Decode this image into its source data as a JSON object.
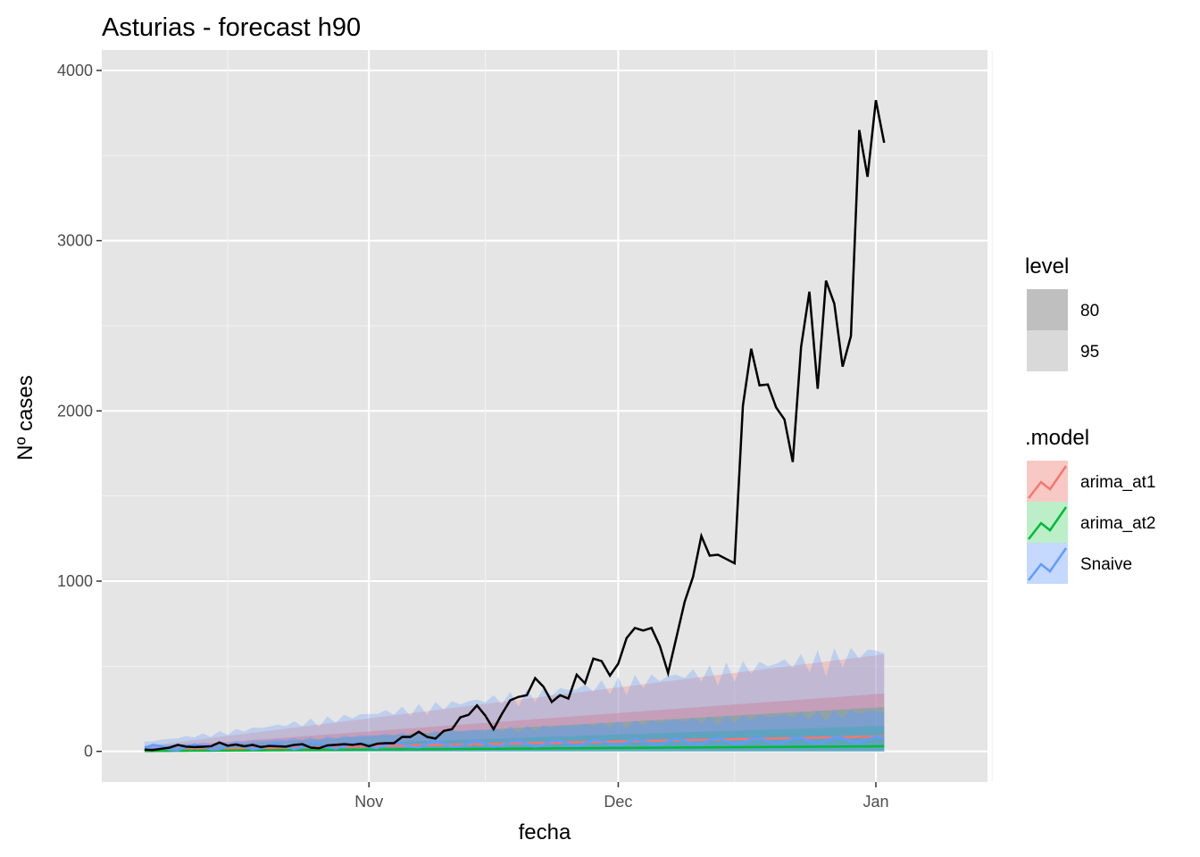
{
  "chart_data": {
    "type": "line",
    "title": "Asturias - forecast h90",
    "xlabel": "fecha",
    "ylabel": "Nº cases",
    "x_tick_labels": [
      "Nov",
      "Dec",
      "Jan"
    ],
    "y_ticks": [
      0,
      1000,
      2000,
      3000,
      4000
    ],
    "ylim": [
      -180,
      4120
    ],
    "grid": true,
    "legend_position": "right",
    "panel_background": "#e5e5e5",
    "x_start": "2020-10-02",
    "x": [
      "2020-10-02",
      "2020-10-03",
      "2020-10-04",
      "2020-10-05",
      "2020-10-06",
      "2020-10-07",
      "2020-10-08",
      "2020-10-09",
      "2020-10-10",
      "2020-10-11",
      "2020-10-12",
      "2020-10-13",
      "2020-10-14",
      "2020-10-15",
      "2020-10-16",
      "2020-10-17",
      "2020-10-18",
      "2020-10-19",
      "2020-10-20",
      "2020-10-21",
      "2020-10-22",
      "2020-10-23",
      "2020-10-24",
      "2020-10-25",
      "2020-10-26",
      "2020-10-27",
      "2020-10-28",
      "2020-10-29",
      "2020-10-30",
      "2020-10-31",
      "2020-11-01",
      "2020-11-02",
      "2020-11-03",
      "2020-11-04",
      "2020-11-05",
      "2020-11-06",
      "2020-11-07",
      "2020-11-08",
      "2020-11-09",
      "2020-11-10",
      "2020-11-11",
      "2020-11-12",
      "2020-11-13",
      "2020-11-14",
      "2020-11-15",
      "2020-11-16",
      "2020-11-17",
      "2020-11-18",
      "2020-11-19",
      "2020-11-20",
      "2020-11-21",
      "2020-11-22",
      "2020-11-23",
      "2020-11-24",
      "2020-11-25",
      "2020-11-26",
      "2020-11-27",
      "2020-11-28",
      "2020-11-29",
      "2020-11-30",
      "2020-12-01",
      "2020-12-02",
      "2020-12-03",
      "2020-12-04",
      "2020-12-05",
      "2020-12-06",
      "2020-12-07",
      "2020-12-08",
      "2020-12-09",
      "2020-12-10",
      "2020-12-11",
      "2020-12-12",
      "2020-12-13",
      "2020-12-14",
      "2020-12-15",
      "2020-12-16",
      "2020-12-17",
      "2020-12-18",
      "2020-12-19",
      "2020-12-20",
      "2020-12-21",
      "2020-12-22",
      "2020-12-23",
      "2020-12-24",
      "2020-12-25",
      "2020-12-26",
      "2020-12-27",
      "2020-12-28",
      "2020-12-29",
      "2020-12-30",
      "2020-12-31",
      "2021-01-01",
      "2021-01-02",
      "2021-01-03",
      "2021-01-04",
      "2021-01-05",
      "2021-01-06",
      "2021-01-07",
      "2021-01-08",
      "2021-01-09",
      "2021-01-10",
      "2021-01-11"
    ],
    "observed": [
      10,
      8,
      15,
      22,
      38,
      28,
      25,
      27,
      30,
      52,
      33,
      40,
      30,
      38,
      25,
      32,
      30,
      28,
      38,
      42,
      22,
      18,
      35,
      38,
      42,
      38,
      45,
      30,
      45,
      48,
      48,
      85,
      85,
      115,
      85,
      75,
      120,
      130,
      200,
      215,
      270,
      210,
      130,
      220,
      300,
      320,
      330,
      430,
      380,
      290,
      330,
      310,
      450,
      400,
      545,
      530,
      445,
      515,
      665,
      725,
      710,
      725,
      620,
      460,
      670,
      880,
      1025,
      1265,
      1150,
      1155,
      1130,
      1105,
      2030,
      2365,
      2150,
      2155,
      2020,
      1950,
      1700,
      2375,
      2700,
      2130,
      2765,
      2630,
      2260,
      2440,
      3650,
      3375,
      3825,
      3575
    ],
    "observed_start": "2020-10-05",
    "series": [
      {
        "name": "arima_at1",
        "color": "#f8766d",
        "fill": "#f8766d",
        "mean_start": 5,
        "mean_end": 88,
        "lo95_start": 0,
        "hi95_start": 30,
        "lo95_end": 0,
        "hi95_end": 570,
        "lo80_start": 0,
        "hi80_start": 20,
        "lo80_end": 20,
        "hi80_end": 340
      },
      {
        "name": "arima_at2",
        "color": "#00ba38",
        "fill": "#00ba38",
        "mean_start": 2,
        "mean_end": 30,
        "lo95_start": 0,
        "hi95_start": 15,
        "lo95_end": 0,
        "hi95_end": 260,
        "lo80_start": 0,
        "hi80_start": 8,
        "lo80_end": 0,
        "hi80_end": 150
      },
      {
        "name": "Snaive",
        "color": "#619cff",
        "fill": "#619cff",
        "mean_start": 20,
        "mean_end": 70,
        "lo95_start": 0,
        "hi95_start": 60,
        "lo95_end": 0,
        "hi95_end": 650,
        "lo80_start": 0,
        "hi80_start": 35,
        "lo80_end": 0,
        "hi80_end": 260
      }
    ],
    "observed_color": "#000000"
  },
  "legend": {
    "level_title": "level",
    "level_items": [
      {
        "label": "80",
        "color": "#bfbfbf"
      },
      {
        "label": "95",
        "color": "#d9d9d9"
      }
    ],
    "model_title": ".model",
    "model_items": [
      {
        "label": "arima_at1",
        "color": "#f8766d",
        "fill": "#f8c9c4"
      },
      {
        "label": "arima_at2",
        "color": "#00ba38",
        "fill": "#bcefc8"
      },
      {
        "label": "Snaive",
        "color": "#619cff",
        "fill": "#c5d8fd"
      }
    ]
  }
}
